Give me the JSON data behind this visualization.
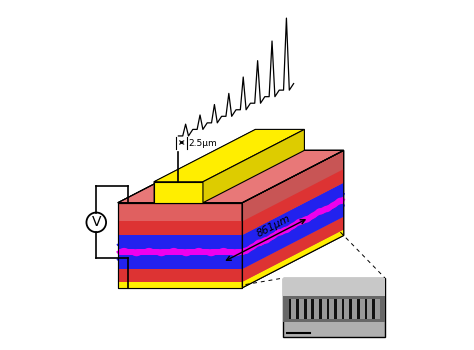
{
  "bg_color": "#ffffff",
  "top_face_color": "#e87878",
  "front_face_color": "#e06060",
  "right_face_color": "#c85555",
  "ridge_top_color": "#ffee00",
  "ridge_front_color": "#ffee00",
  "ridge_right_color": "#ddcc00",
  "layer_yellow": "#ffee00",
  "layer_red": "#dd3333",
  "layer_blue": "#2222ee",
  "layer_magenta": "#ee00ee",
  "annotation_861": "861μm",
  "annotation_25": "2.5μm",
  "voltage_label": "V",
  "sem_bg": "#b0b0b0",
  "sem_dark": "#444444",
  "sem_mid": "#777777",
  "sem_bright": "#cccccc"
}
